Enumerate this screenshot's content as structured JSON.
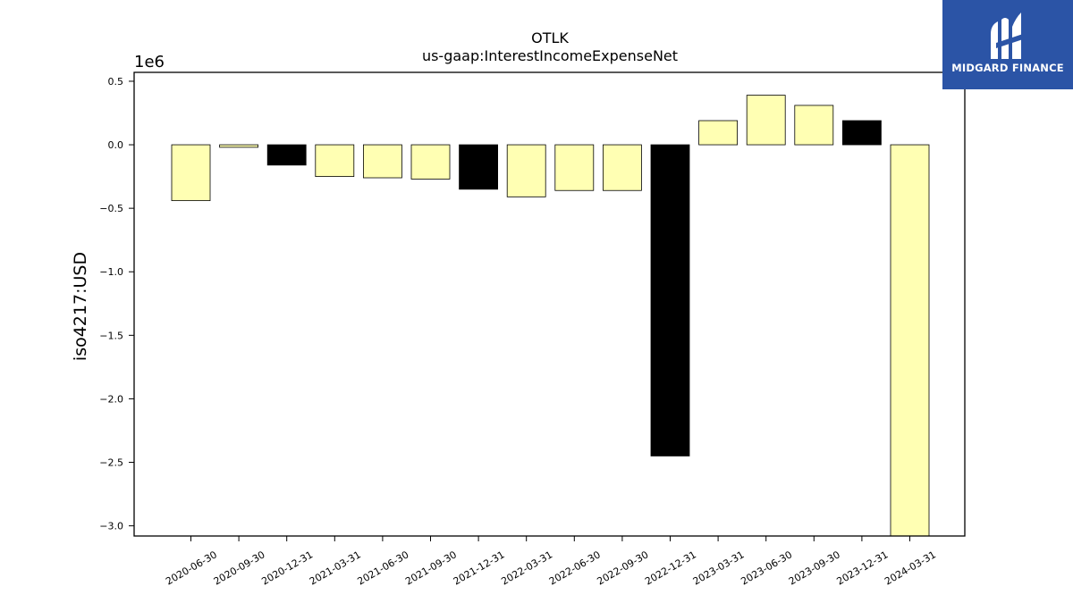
{
  "brand": {
    "name": "MIDGARD FINANCE",
    "icon": "midgard-logo-icon",
    "background": "#2b54a6"
  },
  "chart_data": {
    "type": "bar",
    "title": "OTLK",
    "subtitle": "us-gaap:InterestIncomeExpenseNet",
    "ylabel": "iso4217:USD",
    "xlabel": "",
    "y_offset_label": "1e6",
    "y_multiplier": 1000000,
    "ylim": [
      -3.08,
      0.57
    ],
    "yticks": [
      0.5,
      0.0,
      -0.5,
      -1.0,
      -1.5,
      -2.0,
      -2.5,
      -3.0
    ],
    "ytick_labels": [
      "0.5",
      "0.0",
      "−0.5",
      "−1.0",
      "−1.5",
      "−2.0",
      "−2.5",
      "−3.0"
    ],
    "grid": false,
    "categories": [
      "2020-06-30",
      "2020-09-30",
      "2020-12-31",
      "2021-03-31",
      "2021-06-30",
      "2021-09-30",
      "2021-12-31",
      "2022-03-31",
      "2022-06-30",
      "2022-09-30",
      "2022-12-31",
      "2023-03-31",
      "2023-06-30",
      "2023-09-30",
      "2023-12-31",
      "2024-03-31"
    ],
    "values": [
      -0.44,
      -0.02,
      -0.16,
      -0.25,
      -0.26,
      -0.27,
      -0.35,
      -0.41,
      -0.36,
      -0.36,
      -2.45,
      0.19,
      0.39,
      0.31,
      0.19,
      -3.08
    ],
    "bar_colors": [
      "#ffffb3",
      "#ffffb3",
      "#000000",
      "#ffffb3",
      "#ffffb3",
      "#ffffb3",
      "#000000",
      "#ffffb3",
      "#ffffb3",
      "#ffffb3",
      "#000000",
      "#ffffb3",
      "#ffffb3",
      "#ffffb3",
      "#000000",
      "#ffffb3"
    ],
    "edge_color": "#000000"
  }
}
